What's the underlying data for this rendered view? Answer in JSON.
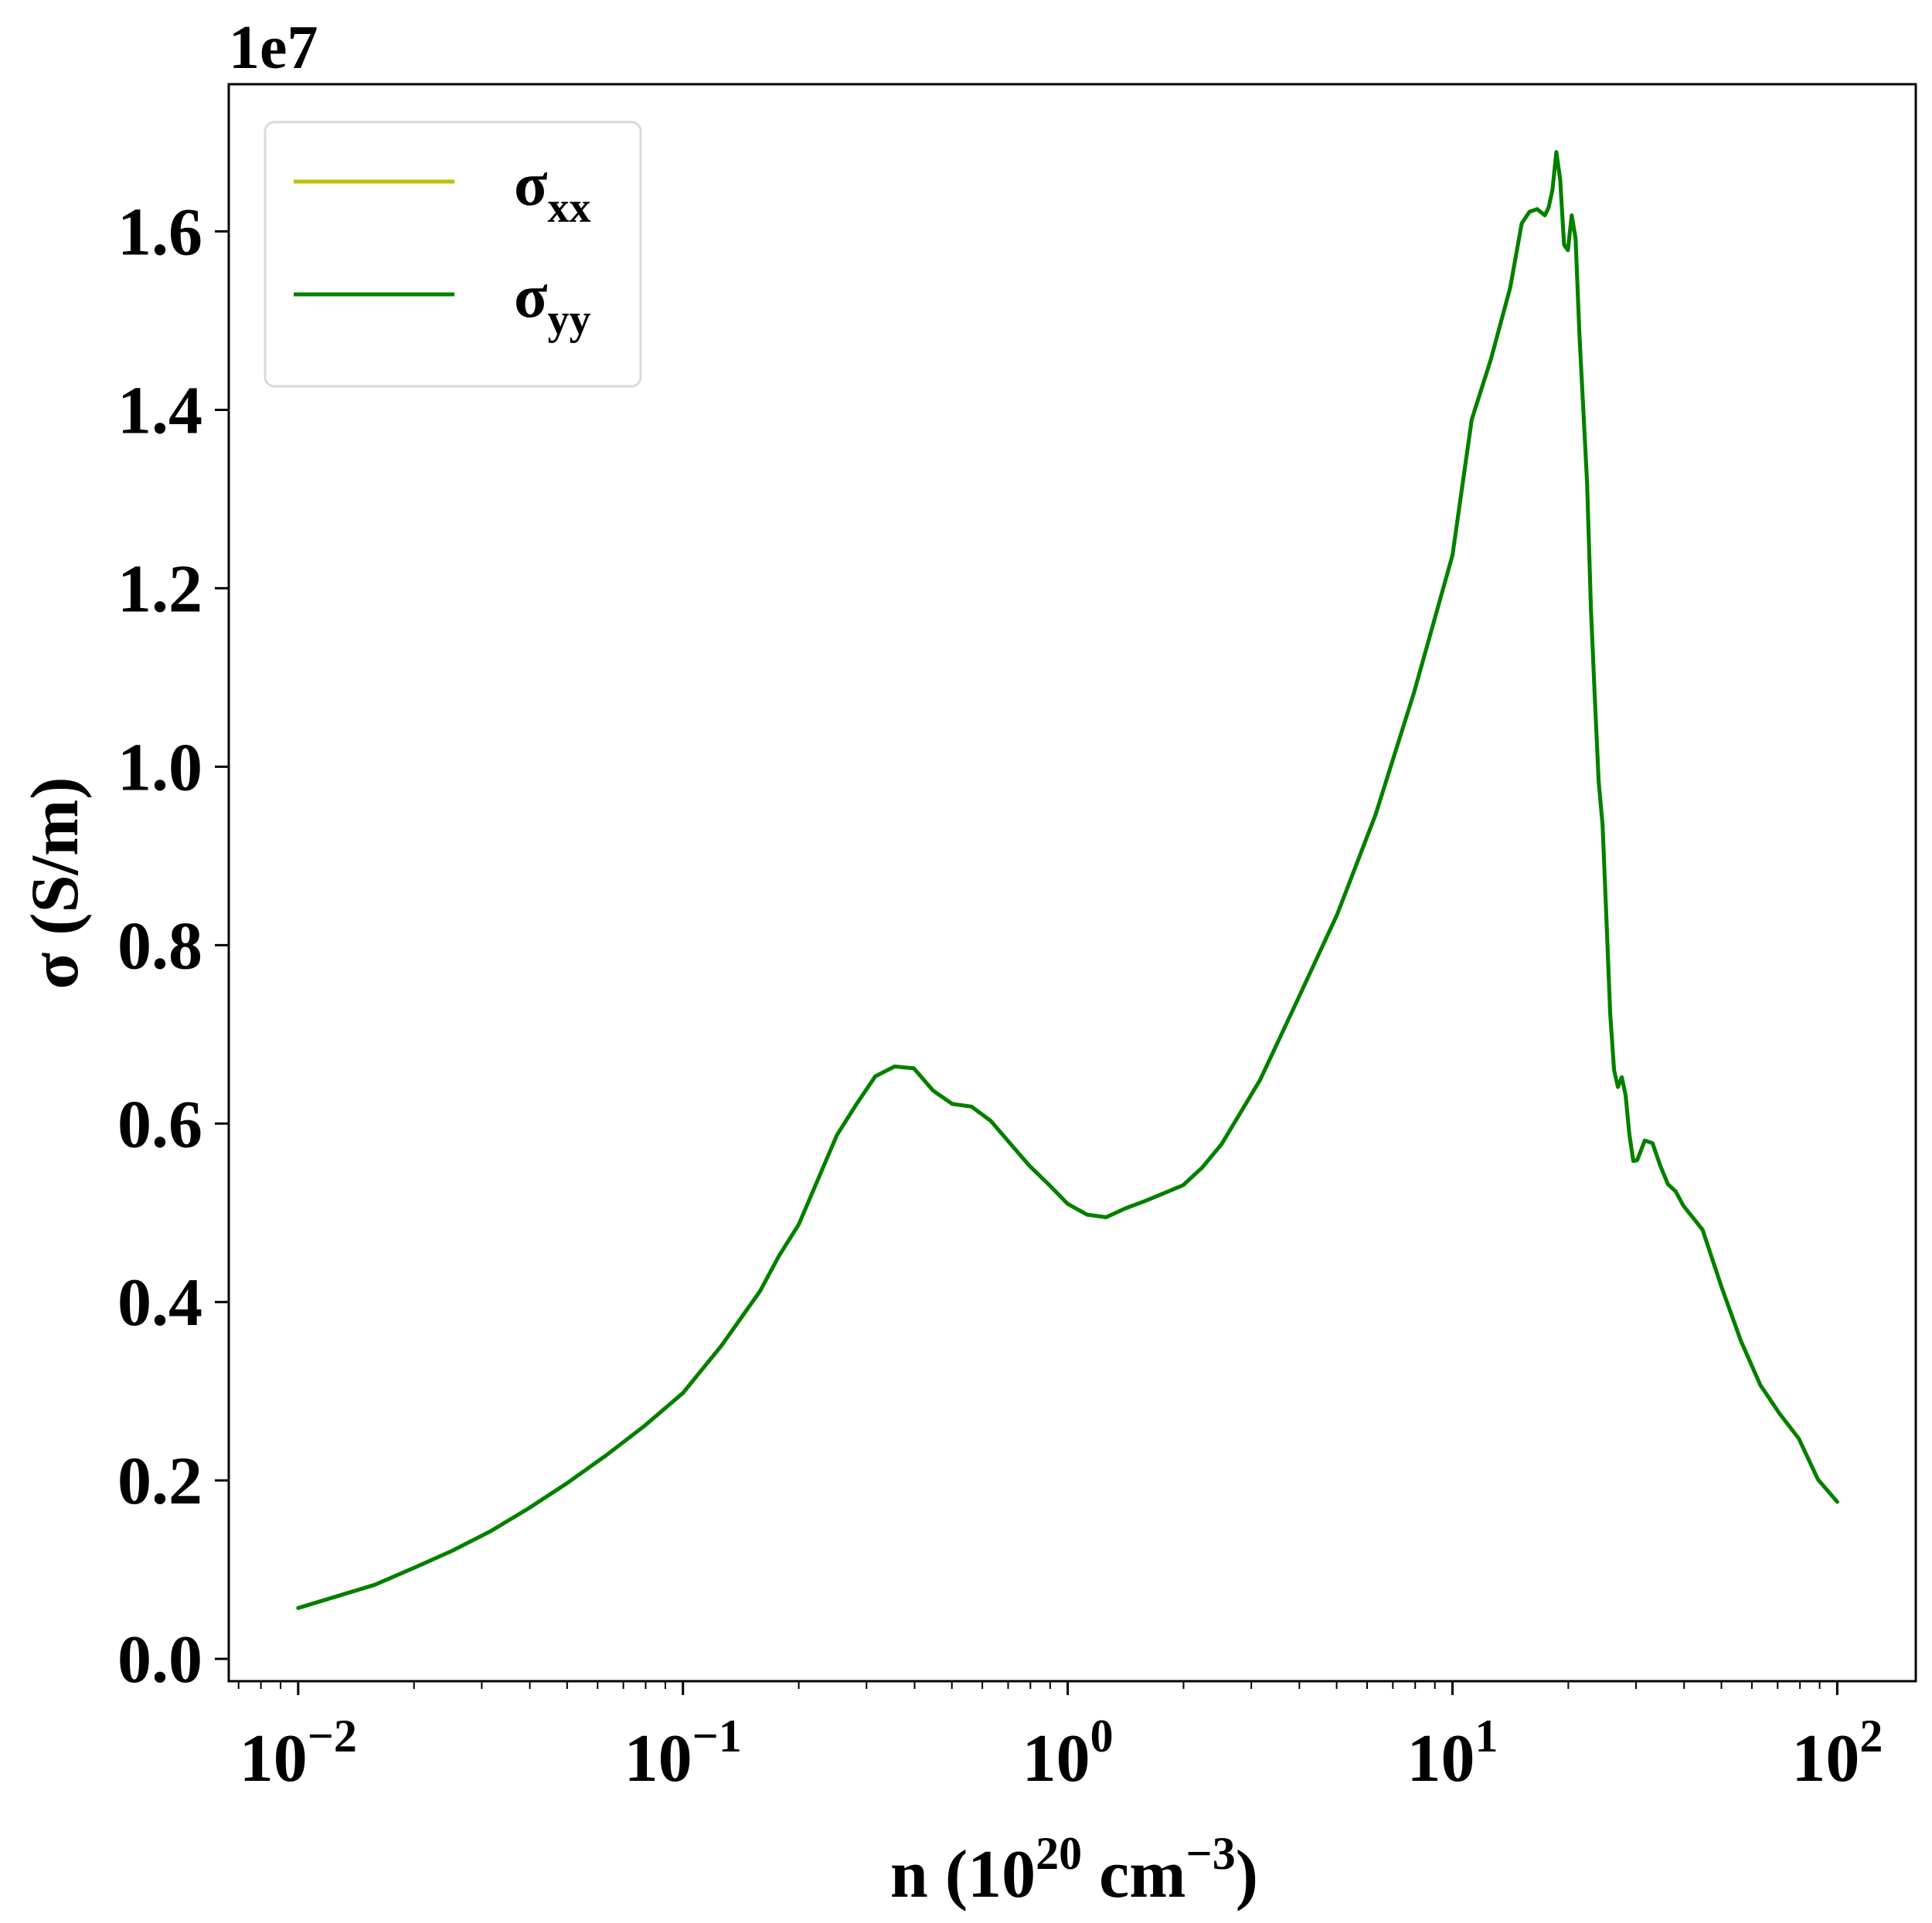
{
  "chart_data": {
    "type": "line",
    "offset_label": "1e7",
    "xlabel": {
      "prefix": "n (10",
      "exp1": "20",
      "mid": " cm",
      "exp2": "−3",
      "suffix": ")"
    },
    "ylabel": "σ (S/m)",
    "xscale": "log",
    "xlim": [
      0.0066,
      160
    ],
    "ylim": [
      -0.025,
      1.765
    ],
    "grid": false,
    "legend_position": "top-left",
    "x_ticks": [
      {
        "value": 0.01,
        "base": "10",
        "exp": "−2"
      },
      {
        "value": 0.1,
        "base": "10",
        "exp": "−1"
      },
      {
        "value": 1,
        "base": "10",
        "exp": "0"
      },
      {
        "value": 10,
        "base": "10",
        "exp": "1"
      },
      {
        "value": 100,
        "base": "10",
        "exp": "2"
      }
    ],
    "y_ticks": [
      {
        "value": 0.0,
        "label": "0.0"
      },
      {
        "value": 0.2,
        "label": "0.2"
      },
      {
        "value": 0.4,
        "label": "0.4"
      },
      {
        "value": 0.6,
        "label": "0.6"
      },
      {
        "value": 0.8,
        "label": "0.8"
      },
      {
        "value": 1.0,
        "label": "1.0"
      },
      {
        "value": 1.2,
        "label": "1.2"
      },
      {
        "value": 1.4,
        "label": "1.4"
      },
      {
        "value": 1.6,
        "label": "1.6"
      }
    ],
    "series": [
      {
        "name": "σxx",
        "symbol": "σ",
        "subscript": "xx",
        "color": "#bfbf00",
        "x": [
          0.01,
          0.0158,
          0.02,
          0.0251,
          0.0316,
          0.0398,
          0.05,
          0.0631,
          0.0794,
          0.1,
          0.1259,
          0.1585,
          0.1778,
          0.2,
          0.2512,
          0.2818,
          0.3162,
          0.3548,
          0.3981,
          0.4467,
          0.5012,
          0.5623,
          0.631,
          0.7079,
          0.7943,
          0.8913,
          1.0,
          1.122,
          1.2589,
          1.4125,
          1.5849,
          1.7783,
          1.9953,
          2.2387,
          2.5119,
          3.1623,
          3.9811,
          5.0119,
          6.3096,
          7.9433,
          10.0,
          11.2202,
          12.5893,
          14.1254,
          15.1356,
          15.8489,
          16.5959,
          17.378,
          17.7828,
          18.197,
          18.6209,
          19.0546,
          19.4984,
          19.9526,
          20.4174,
          20.893,
          21.3796,
          22.3872,
          22.9087,
          23.4423,
          23.9883,
          24.5471,
          25.1189,
          25.704,
          26.3027,
          26.9153,
          27.5423,
          28.1838,
          28.8403,
          29.5121,
          30.1995,
          31.6228,
          33.1131,
          34.6737,
          36.3078,
          38.0189,
          39.8107,
          44.6684,
          50.1187,
          56.2341,
          63.0957,
          70.7946,
          79.4328,
          89.1251,
          100.0
        ],
        "y": [
          0.057,
          0.083,
          0.102,
          0.121,
          0.143,
          0.169,
          0.197,
          0.228,
          0.261,
          0.298,
          0.351,
          0.412,
          0.452,
          0.487,
          0.587,
          0.621,
          0.653,
          0.664,
          0.662,
          0.637,
          0.622,
          0.619,
          0.603,
          0.578,
          0.553,
          0.532,
          0.51,
          0.498,
          0.495,
          0.505,
          0.513,
          0.522,
          0.531,
          0.551,
          0.577,
          0.649,
          0.741,
          0.834,
          0.946,
          1.083,
          1.237,
          1.389,
          1.457,
          1.537,
          1.609,
          1.622,
          1.625,
          1.618,
          1.627,
          1.647,
          1.689,
          1.658,
          1.585,
          1.579,
          1.618,
          1.592,
          1.484,
          1.318,
          1.176,
          1.077,
          0.983,
          0.935,
          0.832,
          0.723,
          0.66,
          0.641,
          0.652,
          0.632,
          0.587,
          0.558,
          0.559,
          0.581,
          0.578,
          0.553,
          0.532,
          0.524,
          0.508,
          0.481,
          0.416,
          0.356,
          0.307,
          0.275,
          0.247,
          0.201,
          0.176
        ]
      },
      {
        "name": "σyy",
        "symbol": "σ",
        "subscript": "yy",
        "color": "#008000",
        "x": [
          0.01,
          0.0158,
          0.02,
          0.0251,
          0.0316,
          0.0398,
          0.05,
          0.0631,
          0.0794,
          0.1,
          0.1259,
          0.1585,
          0.1778,
          0.2,
          0.2512,
          0.2818,
          0.3162,
          0.3548,
          0.3981,
          0.4467,
          0.5012,
          0.5623,
          0.631,
          0.7079,
          0.7943,
          0.8913,
          1.0,
          1.122,
          1.2589,
          1.4125,
          1.5849,
          1.7783,
          1.9953,
          2.2387,
          2.5119,
          3.1623,
          3.9811,
          5.0119,
          6.3096,
          7.9433,
          10.0,
          11.2202,
          12.5893,
          14.1254,
          15.1356,
          15.8489,
          16.5959,
          17.378,
          17.7828,
          18.197,
          18.6209,
          19.0546,
          19.4984,
          19.9526,
          20.4174,
          20.893,
          21.3796,
          22.3872,
          22.9087,
          23.4423,
          23.9883,
          24.5471,
          25.1189,
          25.704,
          26.3027,
          26.9153,
          27.5423,
          28.1838,
          28.8403,
          29.5121,
          30.1995,
          31.6228,
          33.1131,
          34.6737,
          36.3078,
          38.0189,
          39.8107,
          44.6684,
          50.1187,
          56.2341,
          63.0957,
          70.7946,
          79.4328,
          89.1251,
          100.0
        ],
        "y": [
          0.057,
          0.083,
          0.102,
          0.121,
          0.143,
          0.169,
          0.197,
          0.228,
          0.261,
          0.298,
          0.351,
          0.412,
          0.452,
          0.487,
          0.587,
          0.621,
          0.653,
          0.664,
          0.662,
          0.637,
          0.622,
          0.619,
          0.603,
          0.578,
          0.553,
          0.532,
          0.51,
          0.498,
          0.495,
          0.505,
          0.513,
          0.522,
          0.531,
          0.551,
          0.577,
          0.649,
          0.741,
          0.834,
          0.946,
          1.083,
          1.237,
          1.389,
          1.457,
          1.537,
          1.609,
          1.622,
          1.625,
          1.618,
          1.627,
          1.647,
          1.689,
          1.658,
          1.585,
          1.579,
          1.618,
          1.592,
          1.484,
          1.318,
          1.176,
          1.077,
          0.983,
          0.935,
          0.832,
          0.723,
          0.66,
          0.641,
          0.652,
          0.632,
          0.587,
          0.558,
          0.559,
          0.581,
          0.578,
          0.553,
          0.532,
          0.524,
          0.508,
          0.481,
          0.416,
          0.356,
          0.307,
          0.275,
          0.247,
          0.201,
          0.176
        ]
      }
    ]
  }
}
